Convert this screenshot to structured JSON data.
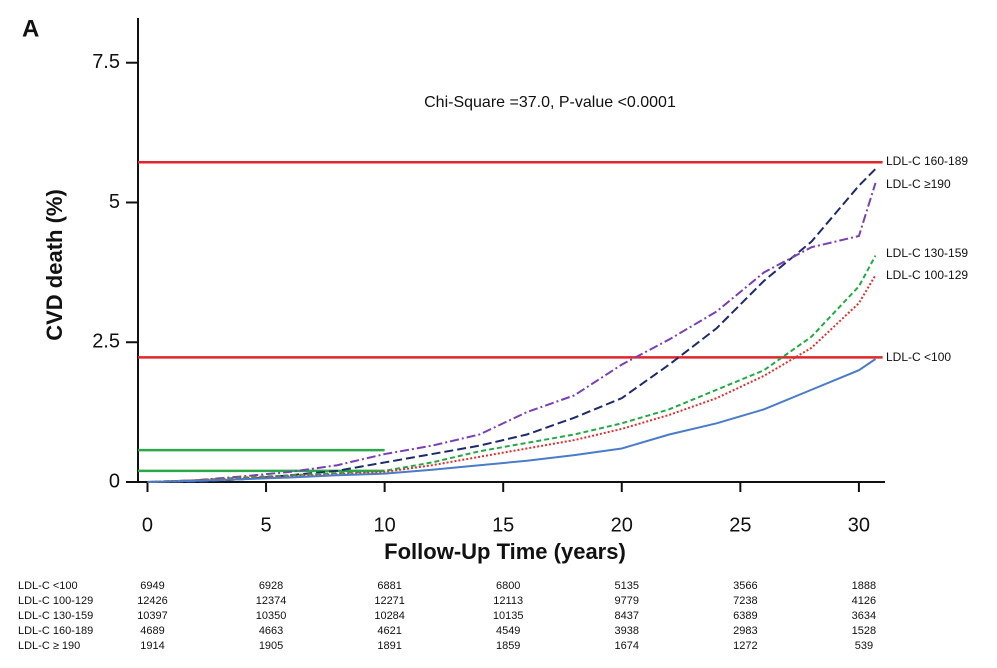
{
  "chart_data": {
    "type": "line",
    "panel_label": "A",
    "annotation": "Chi-Square =37.0, P-value <0.0001",
    "xlabel": "Follow-Up Time (years)",
    "ylabel": "CVD death (%)",
    "xlim": [
      -0.4,
      31.1
    ],
    "ylim": [
      0,
      8.3
    ],
    "xticks": [
      0,
      5,
      10,
      15,
      20,
      25,
      30
    ],
    "yticks": [
      0,
      2.5,
      5,
      7.5
    ],
    "x": [
      0,
      2,
      4,
      6,
      8,
      10,
      12,
      14,
      16,
      18,
      20,
      22,
      24,
      26,
      28,
      30,
      30.7
    ],
    "series": [
      {
        "name": "LDL-C  160-189",
        "color": "#1f2a6b",
        "dash": "9,4",
        "values": [
          0,
          0,
          0.05,
          0.12,
          0.2,
          0.35,
          0.5,
          0.65,
          0.85,
          1.15,
          1.5,
          2.1,
          2.75,
          3.6,
          4.3,
          5.3,
          5.6
        ]
      },
      {
        "name": "LDL-C  ≥190",
        "color": "#7b3fb5",
        "dash": "9,3,2,3",
        "values": [
          0,
          0.03,
          0.1,
          0.18,
          0.3,
          0.5,
          0.65,
          0.85,
          1.25,
          1.55,
          2.1,
          2.55,
          3.05,
          3.75,
          4.2,
          4.4,
          5.35
        ]
      },
      {
        "name": "LDL-C  130-159",
        "color": "#22aa44",
        "dash": "5,3",
        "values": [
          0,
          0.03,
          0.08,
          0.12,
          0.16,
          0.2,
          0.35,
          0.55,
          0.7,
          0.85,
          1.05,
          1.3,
          1.65,
          2.0,
          2.6,
          3.5,
          4.05
        ]
      },
      {
        "name": "LDL-C  100-129",
        "color": "#e0302e",
        "dash": "2,2",
        "values": [
          0,
          0.03,
          0.07,
          0.1,
          0.14,
          0.18,
          0.3,
          0.45,
          0.6,
          0.75,
          0.95,
          1.2,
          1.5,
          1.9,
          2.4,
          3.2,
          3.7
        ]
      },
      {
        "name": "LDL-C  <100",
        "color": "#4a7cc7",
        "dash": "none",
        "values": [
          0,
          0.02,
          0.05,
          0.08,
          0.12,
          0.15,
          0.22,
          0.3,
          0.38,
          0.48,
          0.6,
          0.85,
          1.05,
          1.3,
          1.65,
          2.0,
          2.2
        ]
      }
    ],
    "reference_lines": [
      {
        "value": 5.72,
        "from": -0.4,
        "to": 31.0,
        "color": "#e0262b"
      },
      {
        "value": 2.23,
        "from": -0.4,
        "to": 31.0,
        "color": "#e0262b"
      },
      {
        "value": 0.57,
        "from": -0.4,
        "to": 10,
        "color": "#2aa84a"
      },
      {
        "value": 0.2,
        "from": -0.4,
        "to": 10,
        "color": "#2aa84a"
      }
    ],
    "risk_table": {
      "rows": [
        {
          "label": "LDL-C <100",
          "counts": [
            6949,
            6928,
            6881,
            6800,
            5135,
            3566,
            1888
          ]
        },
        {
          "label": "LDL-C  100-129",
          "counts": [
            12426,
            12374,
            12271,
            12113,
            9779,
            7238,
            4126
          ]
        },
        {
          "label": "LDL-C  130-159",
          "counts": [
            10397,
            10350,
            10284,
            10135,
            8437,
            6389,
            3634
          ]
        },
        {
          "label": "LDL-C  160-189",
          "counts": [
            4689,
            4663,
            4621,
            4549,
            3938,
            2983,
            1528
          ]
        },
        {
          "label": "LDL-C ≥ 190",
          "counts": [
            1914,
            1905,
            1891,
            1859,
            1674,
            1272,
            539
          ]
        }
      ]
    }
  }
}
